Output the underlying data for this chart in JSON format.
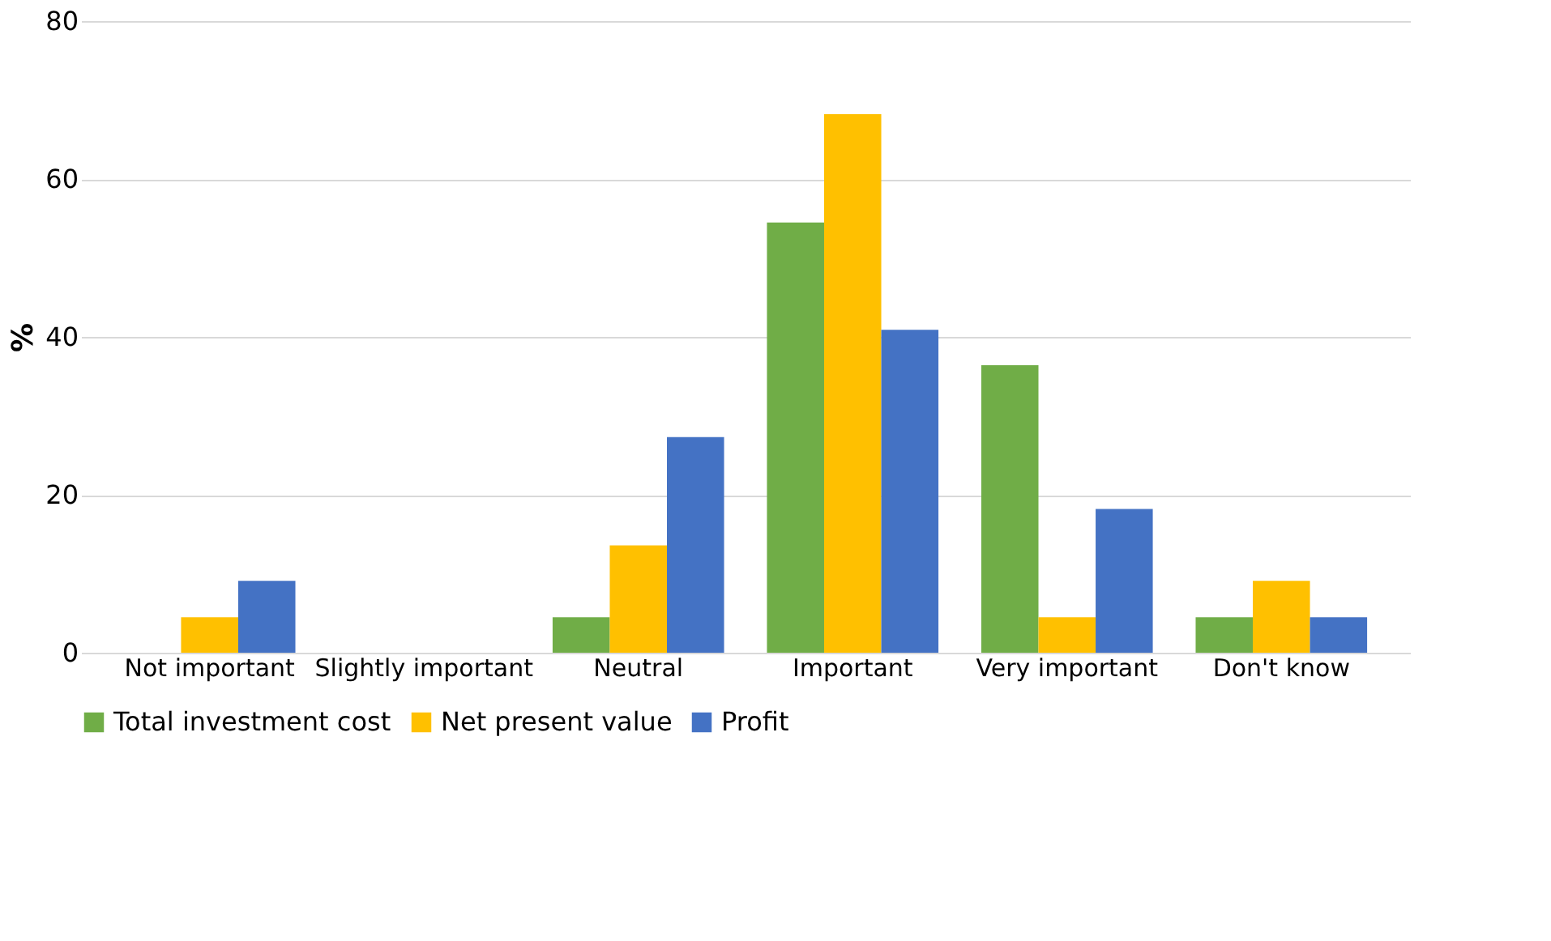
{
  "chart_data": {
    "type": "bar",
    "ylabel": "%",
    "categories": [
      "Not important",
      "Slightly important",
      "Neutral",
      "Important",
      "Very important",
      "Don't know"
    ],
    "series": [
      {
        "name": "Total investment cost",
        "color": "#70ad47",
        "values": [
          0,
          0,
          4.5,
          54.5,
          36.4,
          4.5
        ]
      },
      {
        "name": "Net present value",
        "color": "#ffc000",
        "values": [
          4.5,
          0,
          13.6,
          68.2,
          4.5,
          9.1
        ]
      },
      {
        "name": "Profit",
        "color": "#4472c4",
        "values": [
          9.1,
          0,
          27.3,
          40.9,
          18.2,
          4.5
        ]
      }
    ],
    "ylim": [
      0,
      80
    ],
    "yticks": [
      0,
      20,
      40,
      60,
      80
    ],
    "grid": "y",
    "legend": "bottom"
  }
}
